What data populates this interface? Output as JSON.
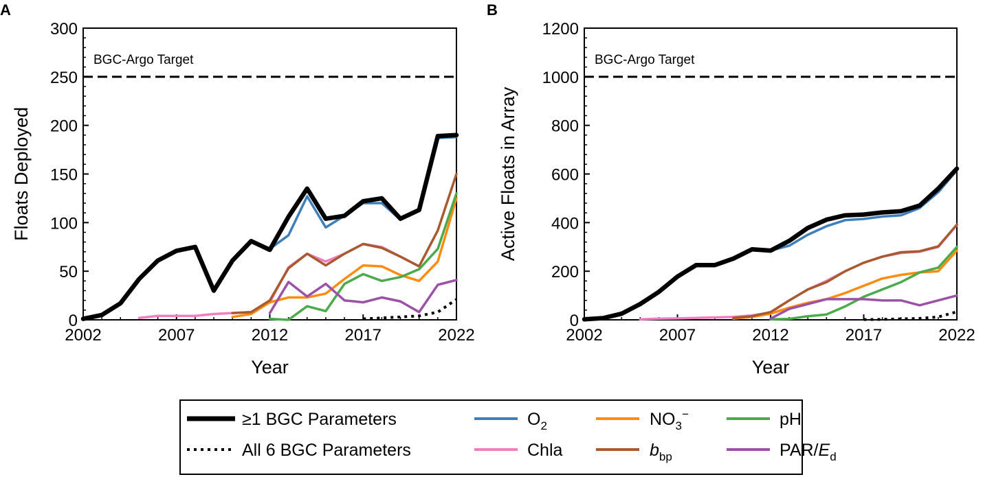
{
  "chart_data": [
    {
      "type": "line",
      "panel": "A",
      "ylabel": "Floats Deployed",
      "xlabel": "Year",
      "xlim": [
        2002,
        2022
      ],
      "ylim": [
        0,
        300
      ],
      "xticks": [
        2002,
        2007,
        2012,
        2017,
        2022
      ],
      "yticks": [
        0,
        50,
        100,
        150,
        200,
        250,
        300
      ],
      "target": {
        "value": 250,
        "label": "BGC-Argo Target"
      },
      "series": [
        {
          "key": "o2",
          "x": [
            2012,
            2013,
            2014,
            2015,
            2016,
            2017,
            2018,
            2019,
            2020,
            2021,
            2022
          ],
          "y": [
            73,
            87,
            127,
            95,
            107,
            120,
            120,
            103,
            113,
            187,
            188
          ]
        },
        {
          "key": "chla",
          "x": [
            2005,
            2006,
            2007,
            2008,
            2009,
            2010,
            2011,
            2012,
            2013,
            2014,
            2015,
            2016,
            2017,
            2018,
            2019,
            2020
          ],
          "y": [
            2,
            4,
            4,
            4,
            6,
            7,
            8,
            18,
            54,
            68,
            60,
            68,
            78,
            75,
            65,
            55
          ]
        },
        {
          "key": "no3",
          "x": [
            2010,
            2011,
            2012,
            2013,
            2014,
            2015,
            2016,
            2017,
            2018,
            2019,
            2020,
            2021,
            2022
          ],
          "y": [
            3,
            6,
            18,
            23,
            23,
            27,
            42,
            56,
            55,
            46,
            40,
            60,
            125
          ]
        },
        {
          "key": "bbp",
          "x": [
            2010,
            2011,
            2012,
            2013,
            2014,
            2015,
            2016,
            2017,
            2018,
            2019,
            2020,
            2021,
            2022
          ],
          "y": [
            7,
            8,
            20,
            53,
            68,
            56,
            68,
            78,
            74,
            65,
            55,
            92,
            150
          ]
        },
        {
          "key": "ph",
          "x": [
            2012,
            2013,
            2014,
            2015,
            2016,
            2017,
            2018,
            2019,
            2020,
            2021,
            2022
          ],
          "y": [
            1,
            0,
            14,
            9,
            37,
            47,
            40,
            44,
            52,
            73,
            130
          ]
        },
        {
          "key": "par",
          "x": [
            2012,
            2013,
            2014,
            2015,
            2016,
            2017,
            2018,
            2019,
            2020,
            2021,
            2022
          ],
          "y": [
            7,
            39,
            24,
            37,
            20,
            18,
            23,
            19,
            8,
            36,
            41
          ]
        },
        {
          "key": "all6",
          "x": [
            2017,
            2018,
            2019,
            2020,
            2021,
            2022
          ],
          "y": [
            1,
            2,
            3,
            4,
            8,
            21
          ]
        },
        {
          "key": "any",
          "x": [
            2002,
            2003,
            2004,
            2005,
            2006,
            2007,
            2008,
            2009,
            2010,
            2011,
            2012,
            2013,
            2014,
            2015,
            2016,
            2017,
            2018,
            2019,
            2020,
            2021,
            2022
          ],
          "y": [
            1,
            5,
            17,
            42,
            61,
            71,
            75,
            30,
            61,
            81,
            72,
            106,
            135,
            104,
            107,
            122,
            125,
            104,
            113,
            189,
            190
          ]
        }
      ]
    },
    {
      "type": "line",
      "panel": "B",
      "ylabel": "Active Floats in Array",
      "xlabel": "Year",
      "xlim": [
        2002,
        2022
      ],
      "ylim": [
        0,
        1200
      ],
      "xticks": [
        2002,
        2007,
        2012,
        2017,
        2022
      ],
      "yticks": [
        0,
        200,
        400,
        600,
        800,
        1000,
        1200
      ],
      "target": {
        "value": 1000,
        "label": "BGC-Argo Target"
      },
      "series": [
        {
          "key": "o2",
          "x": [
            2012,
            2013,
            2014,
            2015,
            2016,
            2017,
            2018,
            2019,
            2020,
            2021,
            2022
          ],
          "y": [
            285,
            305,
            350,
            385,
            410,
            415,
            425,
            430,
            460,
            525,
            615
          ]
        },
        {
          "key": "chla",
          "x": [
            2005,
            2006,
            2007,
            2008,
            2009,
            2010,
            2011,
            2012,
            2013,
            2014,
            2015,
            2016,
            2017,
            2018,
            2019,
            2020,
            2021,
            2022
          ],
          "y": [
            2,
            5,
            6,
            8,
            10,
            12,
            18,
            30,
            80,
            125,
            160,
            200,
            235,
            260,
            275,
            280,
            300,
            390
          ]
        },
        {
          "key": "no3",
          "x": [
            2010,
            2011,
            2012,
            2013,
            2014,
            2015,
            2016,
            2017,
            2018,
            2019,
            2020,
            2021,
            2022
          ],
          "y": [
            5,
            12,
            25,
            50,
            70,
            85,
            110,
            140,
            170,
            185,
            195,
            200,
            285
          ]
        },
        {
          "key": "bbp",
          "x": [
            2010,
            2011,
            2012,
            2013,
            2014,
            2015,
            2016,
            2017,
            2018,
            2019,
            2020,
            2021,
            2022
          ],
          "y": [
            8,
            15,
            32,
            80,
            125,
            155,
            200,
            235,
            260,
            278,
            282,
            302,
            392
          ]
        },
        {
          "key": "ph",
          "x": [
            2012,
            2013,
            2014,
            2015,
            2016,
            2017,
            2018,
            2019,
            2020,
            2021,
            2022
          ],
          "y": [
            2,
            4,
            15,
            22,
            55,
            95,
            125,
            155,
            195,
            215,
            300
          ]
        },
        {
          "key": "par",
          "x": [
            2012,
            2013,
            2014,
            2015,
            2016,
            2017,
            2018,
            2019,
            2020,
            2021,
            2022
          ],
          "y": [
            5,
            45,
            65,
            85,
            85,
            85,
            80,
            80,
            60,
            80,
            100
          ]
        },
        {
          "key": "all6",
          "x": [
            2017,
            2018,
            2019,
            2020,
            2021,
            2022
          ],
          "y": [
            1,
            2,
            4,
            6,
            12,
            33
          ]
        },
        {
          "key": "any",
          "x": [
            2002,
            2003,
            2004,
            2005,
            2006,
            2007,
            2008,
            2009,
            2010,
            2011,
            2012,
            2013,
            2014,
            2015,
            2016,
            2017,
            2018,
            2019,
            2020,
            2021,
            2022
          ],
          "y": [
            2,
            7,
            25,
            65,
            115,
            178,
            225,
            225,
            252,
            290,
            285,
            325,
            378,
            412,
            430,
            433,
            442,
            447,
            470,
            540,
            622
          ]
        }
      ]
    }
  ],
  "legend": [
    {
      "key": "any",
      "label": "≥1 BGC Parameters",
      "color": "#000000",
      "style": "solid-thick"
    },
    {
      "key": "all6",
      "label": "All 6 BGC Parameters",
      "color": "#000000",
      "style": "dotted"
    },
    {
      "key": "o2",
      "label_main": "O",
      "label_sub": "2",
      "color": "#3d7fbb",
      "style": "solid"
    },
    {
      "key": "chla",
      "label": "Chla",
      "color": "#f07fbf",
      "style": "solid"
    },
    {
      "key": "no3",
      "label_main": "NO",
      "label_sub": "3",
      "label_sup": "−",
      "color": "#ff8c10",
      "style": "solid"
    },
    {
      "key": "bbp",
      "label_main": "b",
      "label_sub": "bp",
      "color": "#a85a2e",
      "style": "solid"
    },
    {
      "key": "ph",
      "label": "pH",
      "color": "#4aab4a",
      "style": "solid"
    },
    {
      "key": "par",
      "label_main": "PAR/",
      "label_italic": "E",
      "label_sub": "d",
      "color": "#9b52a6",
      "style": "solid"
    }
  ]
}
